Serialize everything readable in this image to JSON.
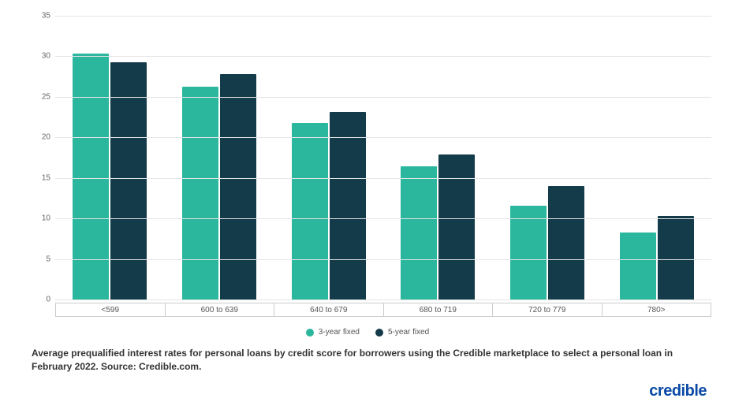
{
  "chart": {
    "type": "bar",
    "ylim": [
      0,
      35
    ],
    "yticks": [
      0,
      5,
      10,
      15,
      20,
      25,
      30,
      35
    ],
    "grid_color": "#e5e5e5",
    "background_color": "#ffffff",
    "axis_label_color": "#666666",
    "axis_label_fontsize": 10,
    "categories": [
      "<599",
      "600 to 639",
      "640 to 679",
      "680 to 719",
      "720 to 779",
      "780>"
    ],
    "series": [
      {
        "name": "3-year fixed",
        "color": "#2bb79e",
        "values": [
          30.3,
          26.3,
          21.8,
          16.4,
          11.6,
          8.3
        ]
      },
      {
        "name": "5-year fixed",
        "color": "#143b4a",
        "values": [
          29.3,
          27.8,
          23.1,
          17.9,
          14.0,
          10.3
        ]
      }
    ],
    "bar_width_pct": 38,
    "x_box_border_color": "#cccccc"
  },
  "legend": {
    "position": "bottom-center",
    "items": [
      {
        "label": "3-year fixed",
        "color": "#2bb79e"
      },
      {
        "label": "5-year fixed",
        "color": "#143b4a"
      }
    ],
    "fontsize": 10
  },
  "caption": {
    "text": "Average prequalified interest rates for personal loans by credit score for borrowers using the Credible marketplace to select a personal loan in February 2022. Source: Credible.com.",
    "fontsize": 12,
    "fontweight": 600,
    "color": "#333333"
  },
  "brand": {
    "text": "credible",
    "color": "#0a49a6",
    "fontsize": 20,
    "fontweight": 700
  }
}
